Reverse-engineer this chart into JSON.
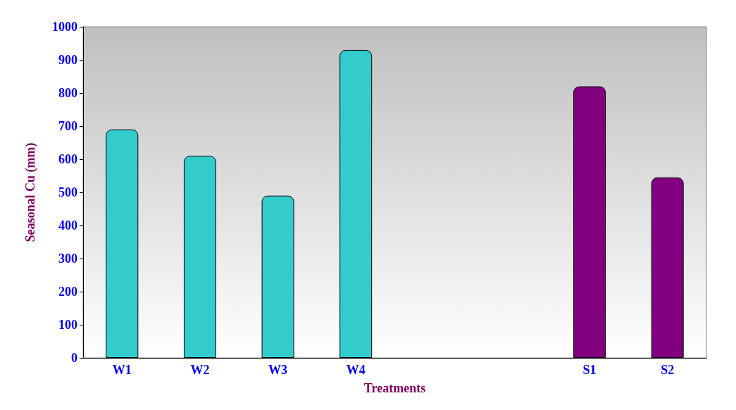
{
  "chart_data": {
    "type": "bar",
    "xlabel": "Treatments",
    "ylabel": "Seasonal Cu (mm)",
    "categories": [
      "W1",
      "W2",
      "W3",
      "W4",
      null,
      null,
      "S1",
      "S2"
    ],
    "values": [
      690,
      610,
      490,
      930,
      null,
      null,
      820,
      545
    ],
    "colors": [
      "#33cccc",
      "#33cccc",
      "#33cccc",
      "#33cccc",
      "#33cccc",
      "#33cccc",
      "#800080",
      "#800080"
    ],
    "ylim": [
      0,
      1000
    ],
    "yticks": [
      0,
      100,
      200,
      300,
      400,
      500,
      600,
      700,
      800,
      900,
      1000
    ],
    "grid": false
  }
}
